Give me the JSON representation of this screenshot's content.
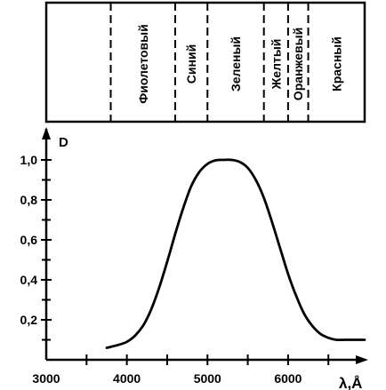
{
  "chart_data": {
    "type": "line",
    "ylabel": "D",
    "xlabel": "λ,Å",
    "xlim": [
      3000,
      6950
    ],
    "ylim": [
      0,
      1.12
    ],
    "x_ticks": [
      3000,
      4000,
      5000,
      6000
    ],
    "x_tick_labels": [
      "3000",
      "4000",
      "5000",
      "6000"
    ],
    "y_ticks": [
      0.2,
      0.4,
      0.6,
      0.8,
      1.0
    ],
    "y_tick_labels": [
      "0,2",
      "0,4",
      "0,6",
      "0,8",
      "1,0"
    ],
    "series": [
      {
        "x": [
          3750,
          3900,
          4000,
          4100,
          4200,
          4300,
          4400,
          4500,
          4600,
          4700,
          4800,
          4900,
          5000,
          5100,
          5200,
          5300,
          5400,
          5500,
          5600,
          5700,
          5800,
          5900,
          6000,
          6100,
          6200,
          6300,
          6400,
          6500,
          6600,
          6700,
          6800,
          6950
        ],
        "y": [
          0.06,
          0.075,
          0.09,
          0.12,
          0.17,
          0.25,
          0.36,
          0.49,
          0.63,
          0.76,
          0.87,
          0.94,
          0.98,
          0.998,
          1.0,
          1.0,
          0.99,
          0.96,
          0.9,
          0.81,
          0.69,
          0.56,
          0.43,
          0.32,
          0.23,
          0.17,
          0.13,
          0.11,
          0.1,
          0.1,
          0.1,
          0.1
        ]
      }
    ],
    "color_bands": [
      {
        "label": "Фиолетовый",
        "from": 3800,
        "to": 4600
      },
      {
        "label": "Синий",
        "from": 4600,
        "to": 5000
      },
      {
        "label": "Зеленый",
        "from": 5000,
        "to": 5700
      },
      {
        "label": "Желтый",
        "from": 5700,
        "to": 6000
      },
      {
        "label": "Оранжевый",
        "from": 6000,
        "to": 6250
      },
      {
        "label": "Красный",
        "from": 6250,
        "to": 6950
      }
    ],
    "grid": false,
    "legend": "none"
  }
}
